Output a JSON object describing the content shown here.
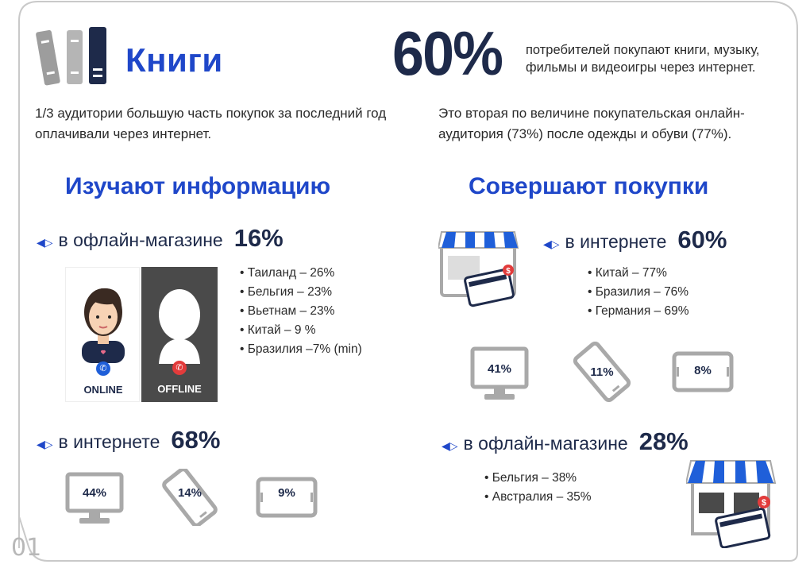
{
  "header": {
    "title": "Книги",
    "headline_pct": "60%",
    "headline_text": "потребителей покупают книги, музыку, фильмы и видеоигры через интернет."
  },
  "intro": {
    "left": "1/3 аудитории большую часть покупок за последний год оплачивали через интернет.",
    "right": "Это вторая по величине покупательская онлайн-аудитория (73%) после одежды и обуви (77%)."
  },
  "research": {
    "heading": "Изучают информацию",
    "offline": {
      "label": "в офлайн-магазине",
      "pct": "16%",
      "countries": [
        "Таиланд – 26%",
        "Бельгия –  23%",
        "Вьетнам – 23%",
        "Китай – 9 %",
        "Бразилия –7% (min)"
      ],
      "online_tag": "ONLINE",
      "offline_tag": "OFFLINE"
    },
    "online": {
      "label": "в интернете",
      "pct": "68%",
      "devices": [
        {
          "type": "monitor-icon",
          "label": "44%"
        },
        {
          "type": "smartphone-icon",
          "label": "14%"
        },
        {
          "type": "tablet-icon",
          "label": "9%"
        }
      ]
    }
  },
  "purchase": {
    "heading": "Совершают покупки",
    "online": {
      "label": "в интернете",
      "pct": "60%",
      "countries": [
        "Китай – 77%",
        "Бразилия – 76%",
        "Германия – 69%"
      ],
      "devices": [
        {
          "type": "monitor-icon",
          "label": "41%"
        },
        {
          "type": "smartphone-icon",
          "label": "11%"
        },
        {
          "type": "tablet-icon",
          "label": "8%"
        }
      ]
    },
    "offline": {
      "label": "в офлайн-магазине",
      "pct": "28%",
      "countries": [
        "Бельгия – 38%",
        "Австралия – 35%"
      ]
    }
  },
  "page_number": "01",
  "colors": {
    "accent_blue": "#1f47c9",
    "navy": "#1e2a4a",
    "grey_icon": "#a9a9a9",
    "red": "#e23b3b"
  }
}
